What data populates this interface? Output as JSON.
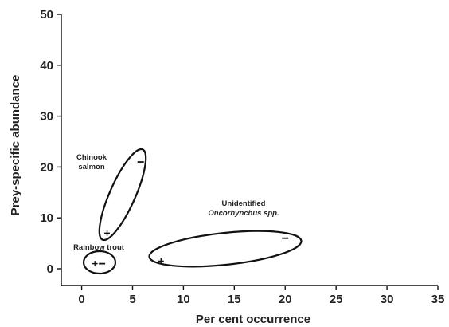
{
  "chart_data": {
    "type": "scatter",
    "title": "",
    "xlabel": "Per cent occurrence",
    "ylabel": "Prey-specific abundance",
    "xlim": [
      -2,
      35
    ],
    "ylim": [
      0,
      50
    ],
    "x_ticks": [
      0,
      5,
      10,
      15,
      20,
      25,
      30,
      35
    ],
    "y_ticks": [
      0,
      10,
      20,
      30,
      40,
      50
    ],
    "grid": false,
    "legend": "none",
    "groups": [
      {
        "label_lines": [
          "Chinook",
          "salmon"
        ],
        "italic_lines": [],
        "points": [
          {
            "x": 2.5,
            "y": 7,
            "marker": "+"
          },
          {
            "x": 5.8,
            "y": 21,
            "marker": "-"
          }
        ]
      },
      {
        "label_lines": [
          "Rainbow trout"
        ],
        "italic_lines": [],
        "points": [
          {
            "x": 1.3,
            "y": 1,
            "marker": "+"
          },
          {
            "x": 2.0,
            "y": 1,
            "marker": "-"
          }
        ]
      },
      {
        "label_lines": [
          "Unidentified",
          "Oncorhynchus spp."
        ],
        "italic_lines": [
          1
        ],
        "points": [
          {
            "x": 7.8,
            "y": 1.5,
            "marker": "+"
          },
          {
            "x": 20,
            "y": 6,
            "marker": "-"
          }
        ]
      }
    ]
  }
}
